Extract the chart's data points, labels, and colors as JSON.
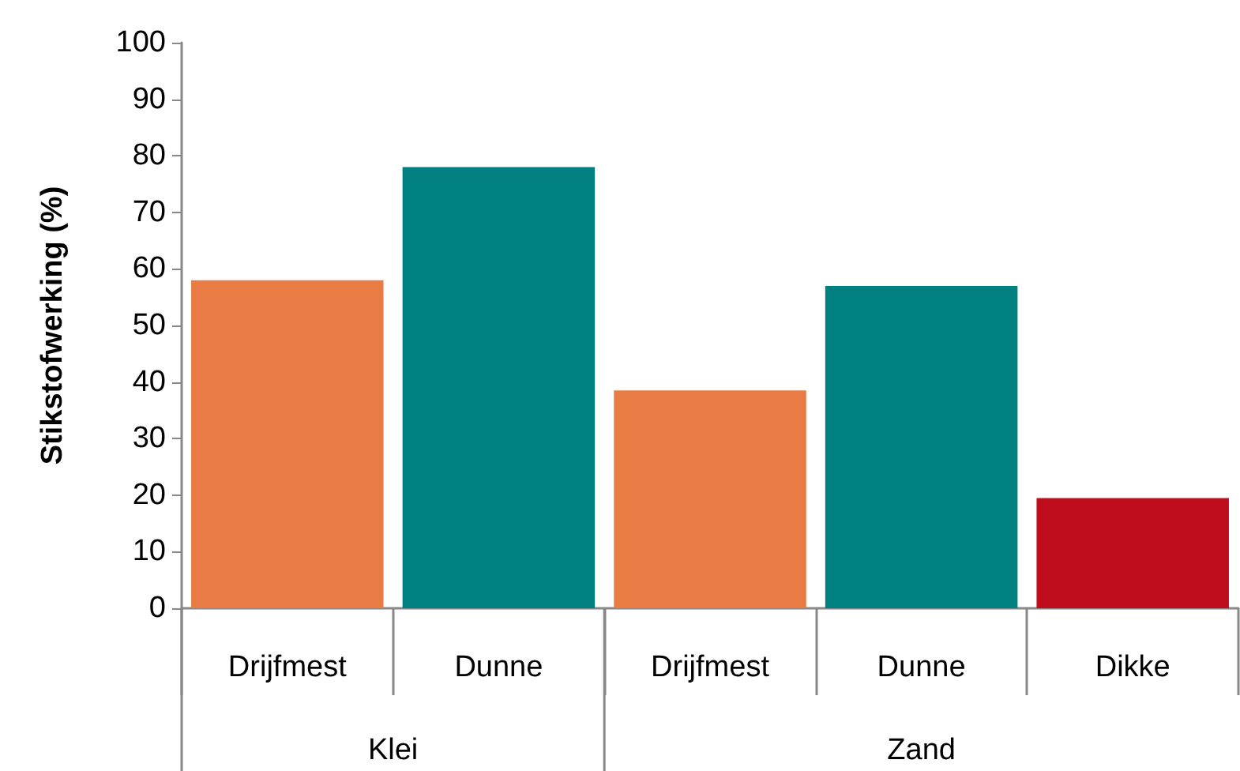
{
  "chart_data": {
    "type": "bar",
    "ylabel": "Stikstofwerking (%)",
    "categories": [
      "Drijfmest",
      "Dunne",
      "Drijfmest",
      "Dunne",
      "Dikke"
    ],
    "values": [
      58,
      78,
      38.5,
      57,
      19.5
    ],
    "colors": [
      "#e97c45",
      "#008080",
      "#e97c45",
      "#008080",
      "#c00d1e"
    ],
    "ylim": [
      0,
      100
    ],
    "yticks": [
      0,
      10,
      20,
      30,
      40,
      50,
      60,
      70,
      80,
      90,
      100
    ],
    "grid": false,
    "annotations": [
      "Klei",
      "Zand"
    ]
  }
}
